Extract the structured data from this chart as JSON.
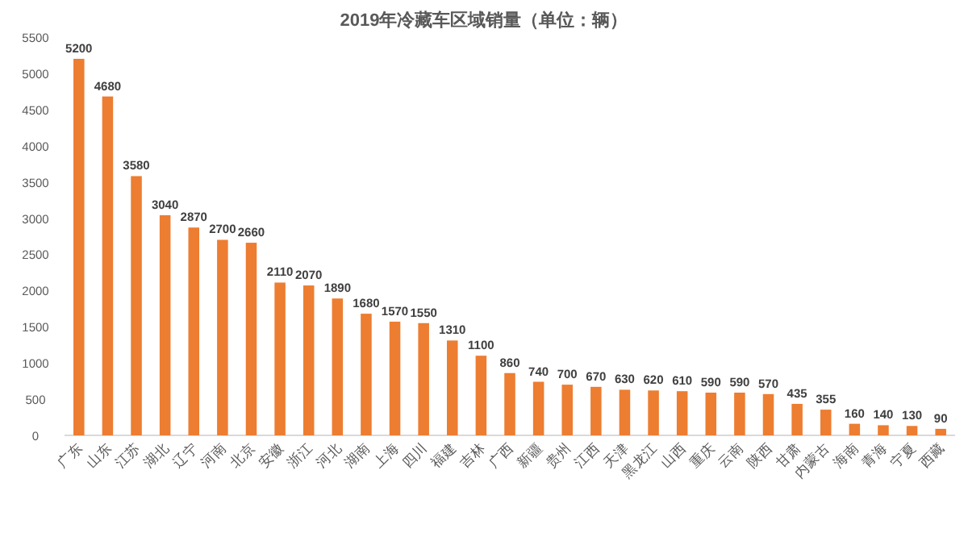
{
  "chart_data": {
    "type": "bar",
    "title": "2019年冷藏车区域销量（单位：辆）",
    "categories": [
      "广东",
      "山东",
      "江苏",
      "湖北",
      "辽宁",
      "河南",
      "北京",
      "安徽",
      "浙江",
      "河北",
      "湖南",
      "上海",
      "四川",
      "福建",
      "吉林",
      "广西",
      "新疆",
      "贵州",
      "江西",
      "天津",
      "黑龙江",
      "山西",
      "重庆",
      "云南",
      "陕西",
      "甘肃",
      "内蒙古",
      "海南",
      "青海",
      "宁夏",
      "西藏"
    ],
    "values": [
      5200,
      4680,
      3580,
      3040,
      2870,
      2700,
      2660,
      2110,
      2070,
      1890,
      1680,
      1570,
      1550,
      1310,
      1100,
      860,
      740,
      700,
      670,
      630,
      620,
      610,
      590,
      590,
      570,
      435,
      355,
      160,
      140,
      130,
      90
    ],
    "color": "#ed7d31",
    "ylim": [
      0,
      5500
    ],
    "yticks": [
      0,
      500,
      1000,
      1500,
      2000,
      2500,
      3000,
      3500,
      4000,
      4500,
      5000,
      5500
    ],
    "grid": false,
    "data_labels": true,
    "legend": false
  }
}
